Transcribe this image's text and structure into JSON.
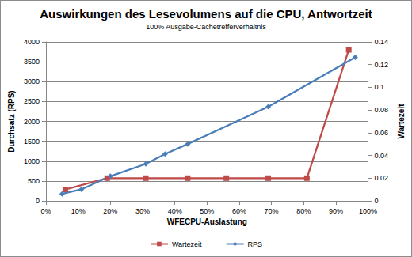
{
  "chart_data": {
    "type": "line",
    "title": "Auswirkungen des Lesevolumens auf die CPU, Antwortzeit",
    "subtitle": "100% Ausgabe-Cachetrefferverhältnis",
    "x_label": "WFECPU-Auslastung",
    "y_label": "Durchsatz (RPS)",
    "y2_label": "Wartezeit",
    "xlim": [
      0,
      100
    ],
    "xticks": [
      {
        "value": 0,
        "label": "0%"
      },
      {
        "value": 10,
        "label": "10%"
      },
      {
        "value": 20,
        "label": "20%"
      },
      {
        "value": 30,
        "label": "30%"
      },
      {
        "value": 40,
        "label": "40%"
      },
      {
        "value": 50,
        "label": "50%"
      },
      {
        "value": 60,
        "label": "60%"
      },
      {
        "value": 70,
        "label": "70%"
      },
      {
        "value": 80,
        "label": "80%"
      },
      {
        "value": 90,
        "label": "90%"
      },
      {
        "value": 100,
        "label": "100%"
      }
    ],
    "ylim": [
      0,
      4000
    ],
    "yticks": [
      0,
      500,
      1000,
      1500,
      2000,
      2500,
      3000,
      3500,
      4000
    ],
    "y2lim": [
      0,
      0.14
    ],
    "y2ticks": [
      0,
      0.02,
      0.04,
      0.06,
      0.08,
      0.1,
      0.12,
      0.14
    ],
    "grid": true,
    "legend": "bottom",
    "series": [
      {
        "name": "Wartezeit",
        "color": "#be4b48",
        "marker": "square",
        "axis": "y2",
        "x": [
          6,
          19,
          31,
          44,
          56,
          69,
          81,
          94
        ],
        "values": [
          0.01,
          0.02,
          0.02,
          0.02,
          0.02,
          0.02,
          0.02,
          0.133
        ]
      },
      {
        "name": "RPS",
        "color": "#4a7ebb",
        "marker": "diamond",
        "x": [
          5,
          11,
          20,
          31,
          37,
          44,
          69,
          96
        ],
        "values": [
          175,
          290,
          620,
          930,
          1180,
          1430,
          2370,
          3610
        ]
      }
    ]
  }
}
